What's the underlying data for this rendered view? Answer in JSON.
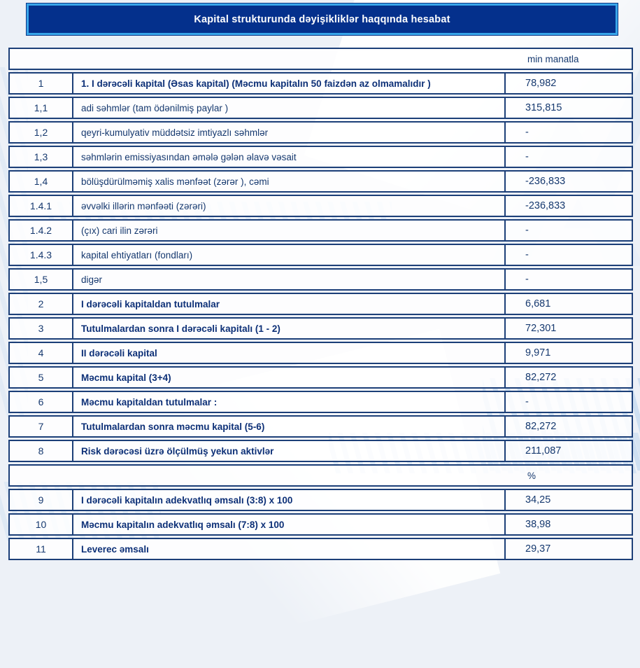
{
  "title": "Kapital strukturunda dəyişikliklər haqqında hesabat",
  "table": {
    "unit_label": "min manatla",
    "percent_label": "%",
    "rows": [
      {
        "num": "1",
        "label": "1. I dərəcəli kapital (Əsas kapital) (Məcmu kapitalın 50 faizdən  az olmamalıdır )",
        "value": "78,982"
      },
      {
        "num": "1,1",
        "label": "adi səhmlər (tam ödənilmiş paylar )",
        "value": "315,815"
      },
      {
        "num": "1,2",
        "label": "qeyri-kumulyativ müddətsiz imtiyazlı səhmlər",
        "value": "-"
      },
      {
        "num": "1,3",
        "label": "səhmlərin emissiyasından əmələ gələn  əlavə vəsait",
        "value": "-"
      },
      {
        "num": "1,4",
        "label": "bölüşdürülməmiş xalis mənfəət (zərər ), cəmi",
        "value": "-236,833"
      },
      {
        "num": "1.4.1",
        "label": "əvvəlki illərin mənfəəti (zərəri)",
        "value": "-236,833"
      },
      {
        "num": "1.4.2",
        "label": "(çıx) cari ilin zərəri",
        "value": "-"
      },
      {
        "num": "1.4.3",
        "label": "kapital ehtiyatları (fondları)",
        "value": "-"
      },
      {
        "num": "1,5",
        "label": "digər",
        "value": "-"
      },
      {
        "num": "2",
        "label": "I dərəcəli kapitaldan  tutulmalar",
        "value": "6,681"
      },
      {
        "num": "3",
        "label": "Tutulmalardan  sonra I dərəcəli kapitalı (1 - 2)",
        "value": "72,301"
      },
      {
        "num": "4",
        "label": "II dərəcəli  kapital",
        "value": "9,971"
      },
      {
        "num": "5",
        "label": "Məcmu kapital (3+4)",
        "value": "82,272"
      },
      {
        "num": "6",
        "label": "Məcmu kapitaldan tutulmalar :",
        "value": "-"
      },
      {
        "num": "7",
        "label": "Tutulmalardan sonra məcmu kapital (5-6)",
        "value": "82,272"
      },
      {
        "num": "8",
        "label": "Risk dərəcəsi üzrə ölçülmüş  yekun aktivlər",
        "value": "211,087"
      },
      {
        "num": "9",
        "label": "I dərəcəli  kapitalın  adekvatlıq əmsalı (3:8) x 100",
        "value": "34,25"
      },
      {
        "num": "10",
        "label": "Məcmu kapitalın  adekvatlıq  əmsalı (7:8) x 100",
        "value": "38,98"
      },
      {
        "num": "11",
        "label": "Leverec əmsalı",
        "value": "29,37"
      }
    ]
  },
  "colors": {
    "title_bar_bg": "#04308c",
    "title_bar_border": "#38a5e9",
    "table_border": "#1c3f78",
    "text_navy": "#16396f",
    "bold_text_navy": "#0d3077",
    "page_background": "#edf1f7"
  }
}
